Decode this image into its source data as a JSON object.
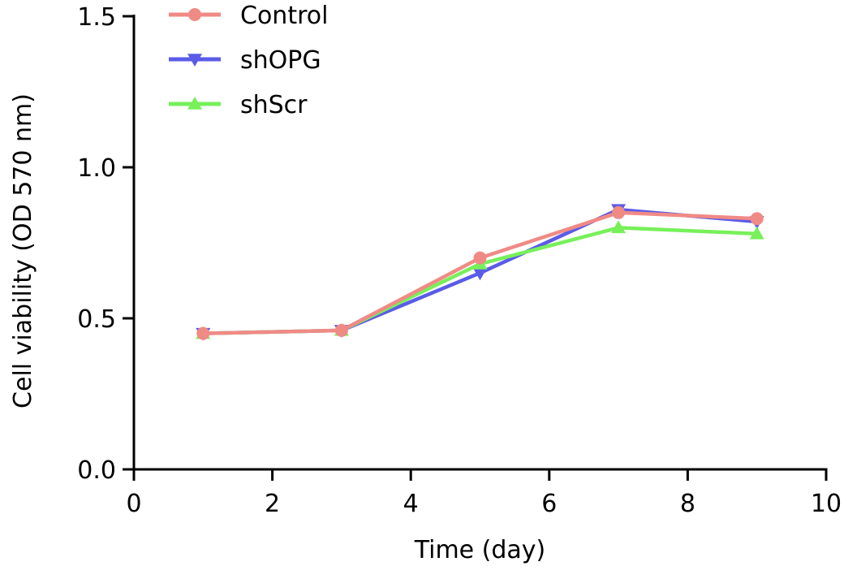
{
  "chart_data": {
    "type": "line",
    "title": "",
    "xlabel": "Time (day)",
    "ylabel": "Cell viability (OD 570 nm)",
    "xlim": [
      0,
      10
    ],
    "ylim": [
      0,
      1.5
    ],
    "xticks": [
      0,
      2,
      4,
      6,
      8,
      10
    ],
    "xtick_labels": [
      "0",
      "2",
      "4",
      "6",
      "8",
      "10"
    ],
    "yticks": [
      0,
      0.5,
      1.0,
      1.5
    ],
    "ytick_labels": [
      "0.0",
      "0.5",
      "1.0",
      "1.5"
    ],
    "grid": false,
    "legend_position": "top-left",
    "x": [
      1,
      3,
      5,
      7,
      9
    ],
    "series": [
      {
        "name": "shOPG",
        "color": "#5b5be8",
        "marker": "triangle-down",
        "values": [
          0.45,
          0.46,
          0.65,
          0.86,
          0.82
        ]
      },
      {
        "name": "shScr",
        "color": "#77f05a",
        "marker": "triangle-up",
        "values": [
          0.45,
          0.46,
          0.68,
          0.8,
          0.78
        ]
      },
      {
        "name": "Control",
        "color": "#f08a85",
        "marker": "circle",
        "values": [
          0.45,
          0.46,
          0.7,
          0.85,
          0.83
        ]
      }
    ],
    "legend_order": [
      "Control",
      "shOPG",
      "shScr"
    ]
  }
}
